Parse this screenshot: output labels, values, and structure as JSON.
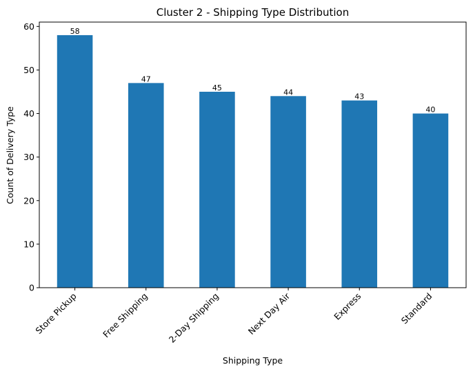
{
  "chart_data": {
    "type": "bar",
    "title": "Cluster 2 - Shipping Type Distribution",
    "xlabel": "Shipping Type",
    "ylabel": "Count of Delivery Type",
    "categories": [
      "Store Pickup",
      "Free Shipping",
      "2-Day Shipping",
      "Next Day Air",
      "Express",
      "Standard"
    ],
    "values": [
      58,
      47,
      45,
      44,
      43,
      40
    ],
    "data_labels": [
      "58",
      "47",
      "45",
      "44",
      "43",
      "40"
    ],
    "ylim": [
      0,
      61
    ],
    "yticks": [
      0,
      10,
      20,
      30,
      40,
      50,
      60
    ],
    "ytick_labels": [
      "0",
      "10",
      "20",
      "30",
      "40",
      "50",
      "60"
    ],
    "bar_color": "#1f77b4",
    "grid": false,
    "legend": "none"
  }
}
